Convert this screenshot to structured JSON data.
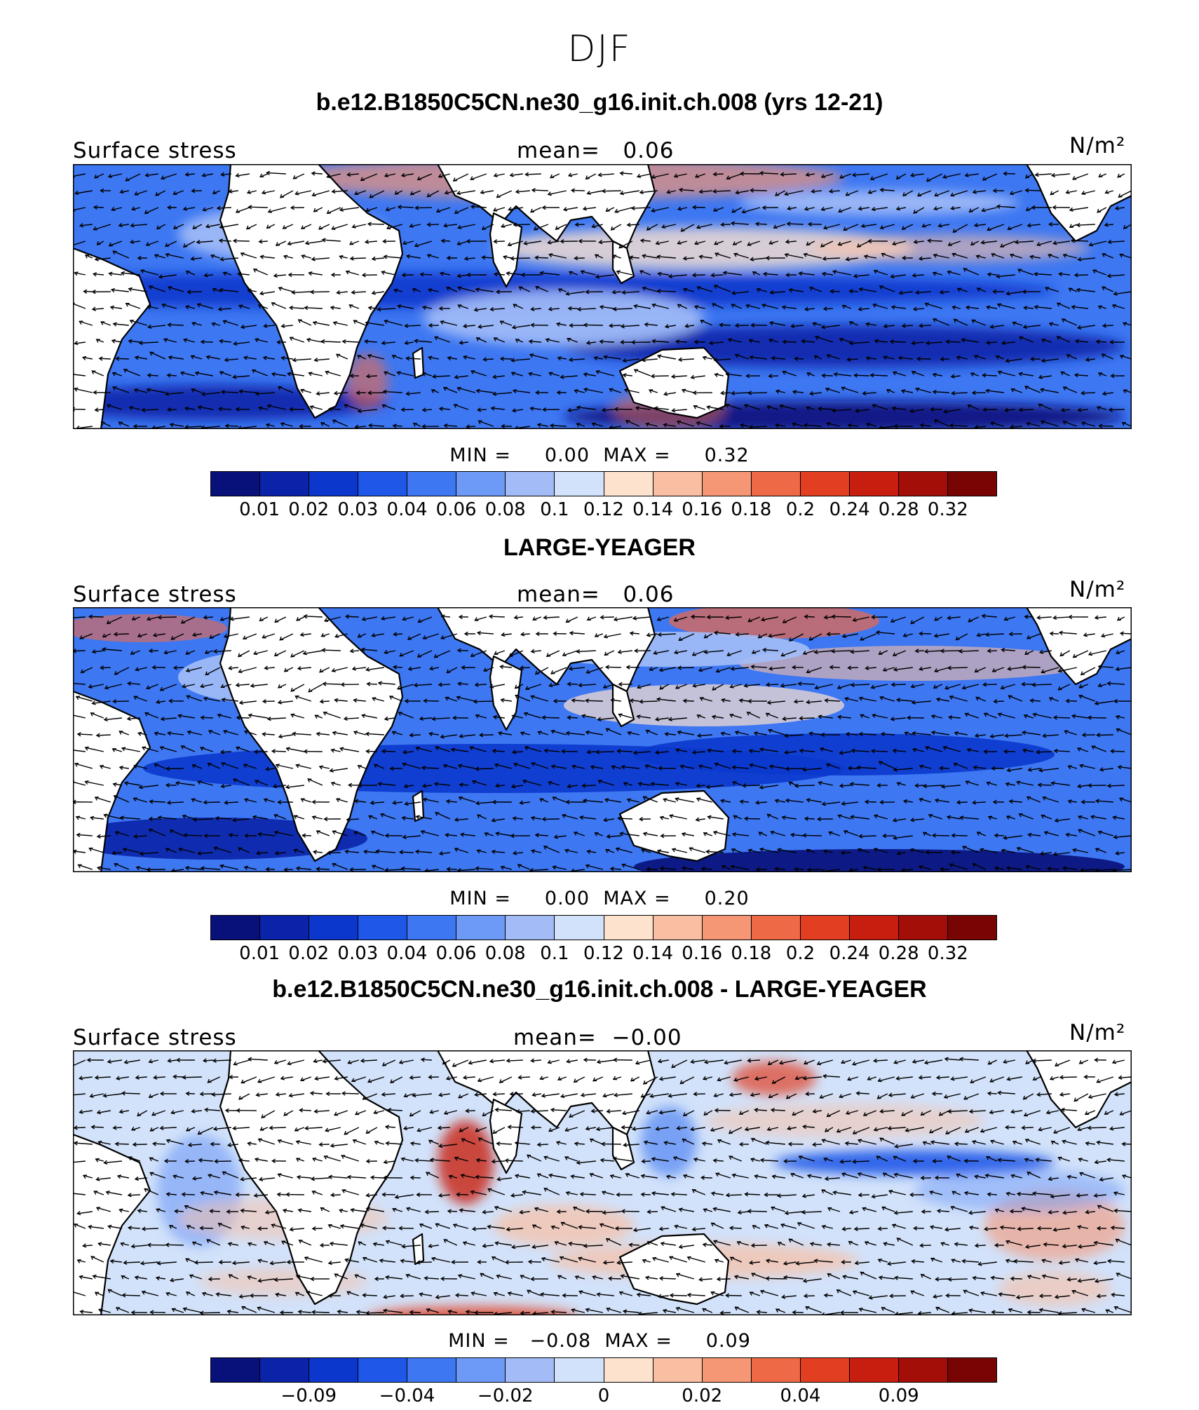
{
  "page_title": "DJF",
  "units": "N/m²",
  "colors": [
    "#08107a",
    "#0a23a8",
    "#0b37cc",
    "#1f57e8",
    "#3d77f2",
    "#6e9af7",
    "#a3bcf7",
    "#d2e2fa",
    "#fde2ce",
    "#f9bfa3",
    "#f59674",
    "#ee6a47",
    "#e13e22",
    "#c81e10",
    "#a30f08",
    "#780404"
  ],
  "chart_data": [
    {
      "type": "heatmap",
      "title": "b.e12.B1850C5CN.ne30_g16.init.ch.008 (yrs 12-21)",
      "variable_label": "Surface stress",
      "mean_label": "mean=",
      "mean_value": "0.06",
      "units": "N/m²",
      "min_label": "MIN =",
      "min_value": "0.00",
      "max_label": "MAX =",
      "max_value": "0.32",
      "colorbar_ticks": [
        "0.01",
        "0.02",
        "0.03",
        "0.04",
        "0.06",
        "0.08",
        "0.1",
        "0.12",
        "0.14",
        "0.16",
        "0.18",
        "0.2",
        "0.24",
        "0.28",
        "0.32"
      ]
    },
    {
      "type": "heatmap",
      "title": "LARGE-YEAGER",
      "variable_label": "Surface stress",
      "mean_label": "mean=",
      "mean_value": "0.06",
      "units": "N/m²",
      "min_label": "MIN =",
      "min_value": "0.00",
      "max_label": "MAX =",
      "max_value": "0.20",
      "colorbar_ticks": [
        "0.01",
        "0.02",
        "0.03",
        "0.04",
        "0.06",
        "0.08",
        "0.1",
        "0.12",
        "0.14",
        "0.16",
        "0.18",
        "0.2",
        "0.24",
        "0.28",
        "0.32"
      ]
    },
    {
      "type": "heatmap",
      "title": "b.e12.B1850C5CN.ne30_g16.init.ch.008 - LARGE-YEAGER",
      "variable_label": "Surface stress",
      "mean_label": "mean=",
      "mean_value": "−0.00",
      "units": "N/m²",
      "min_label": "MIN =",
      "min_value": "−0.08",
      "max_label": "MAX =",
      "max_value": "0.09",
      "colorbar_ticks": [
        "",
        "−0.09",
        "",
        "−0.04",
        "",
        "−0.02",
        "",
        "0",
        "",
        "0.02",
        "",
        "0.04",
        "",
        "0.09",
        ""
      ]
    }
  ]
}
